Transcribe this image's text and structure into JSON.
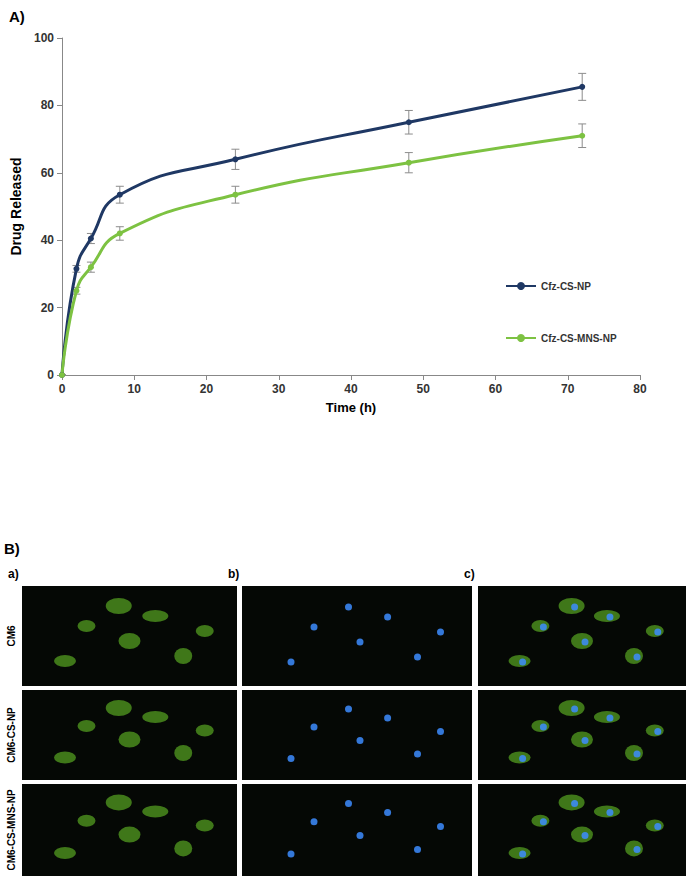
{
  "chart_data": {
    "type": "line",
    "title": "A)",
    "x_label": "Time (h)",
    "y_label": "Drug Released",
    "x": [
      0,
      2,
      4,
      8,
      24,
      48,
      72
    ],
    "series": [
      {
        "name": "Cfz-CS-NP",
        "color": "#1f3864",
        "values": [
          0,
          31.5,
          40.5,
          53.5,
          64,
          75,
          85.5
        ],
        "errors": [
          0,
          1,
          1.5,
          2.5,
          3,
          3.5,
          4
        ]
      },
      {
        "name": "Cfz-CS-MNS-NP",
        "color": "#7dc242",
        "values": [
          0,
          25,
          32,
          42,
          53.5,
          63,
          71
        ],
        "errors": [
          0,
          1,
          1.5,
          2,
          2.5,
          3,
          3.5
        ]
      }
    ],
    "xlim": [
      0,
      80
    ],
    "xticks": [
      0,
      10,
      20,
      30,
      40,
      50,
      60,
      70,
      80
    ],
    "ylim": [
      0,
      100
    ],
    "yticks": [
      0,
      20,
      40,
      60,
      80,
      100
    ],
    "legend": "right",
    "grid": false,
    "marker": "circle",
    "line_style": "solid"
  },
  "figure_b": {
    "panel_label": "B)",
    "columns": [
      "a)",
      "b)",
      "c)"
    ],
    "rows": [
      "CM6",
      "CM6-CS-NP",
      "CM6-CS-MNS-NP"
    ]
  }
}
